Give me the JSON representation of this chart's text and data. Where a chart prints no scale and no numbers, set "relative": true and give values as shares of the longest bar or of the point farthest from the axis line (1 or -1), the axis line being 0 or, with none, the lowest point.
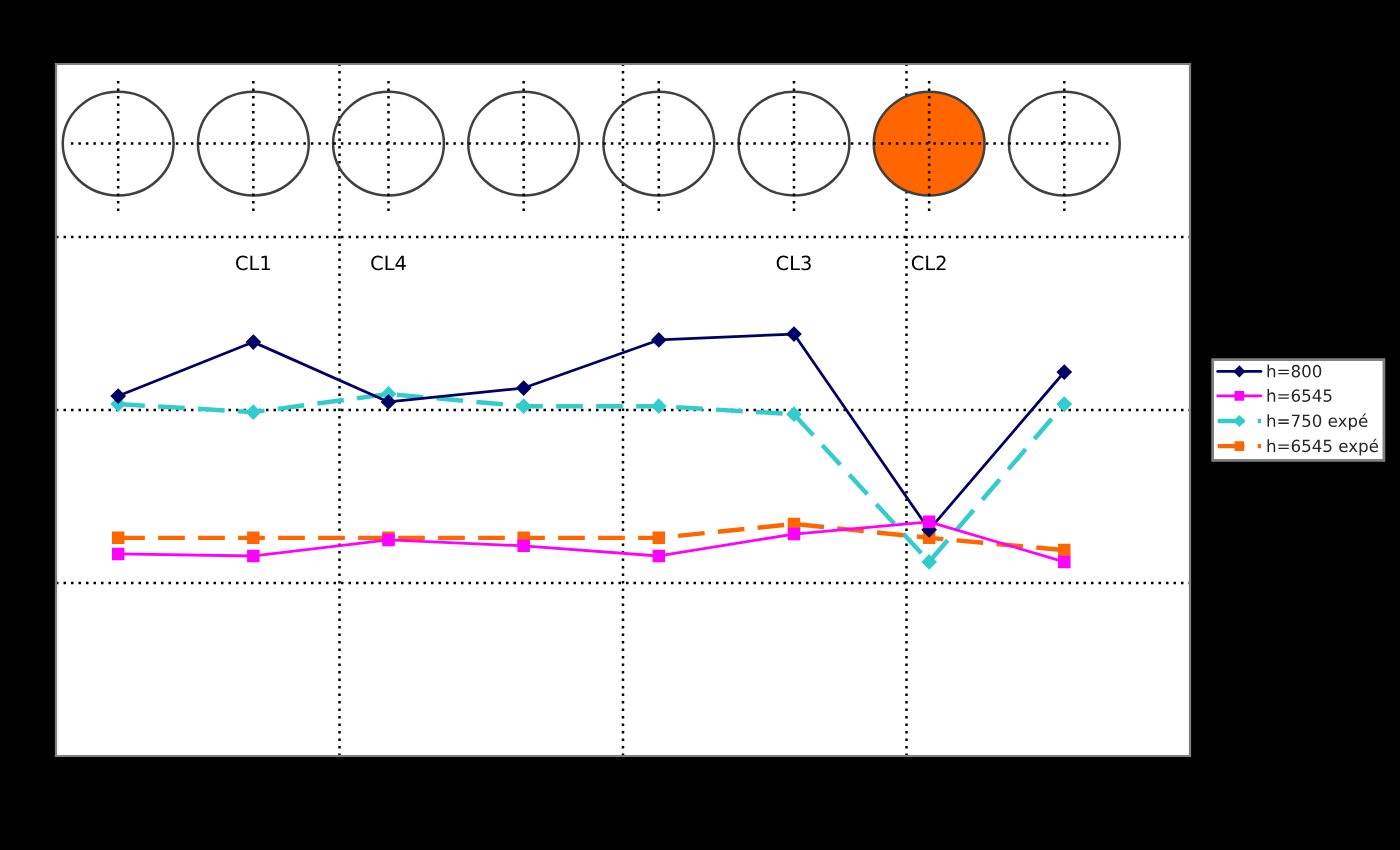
{
  "chart_data": {
    "type": "line",
    "relative": true,
    "grid": true,
    "legend": "right",
    "categories": [
      null,
      null,
      null,
      null,
      null,
      null,
      null,
      null
    ],
    "annotations": [
      "CL1",
      "CL4",
      "CL3",
      "CL2"
    ],
    "series": [
      {
        "name": "h=800",
        "color": "#000066",
        "marker": "diamond",
        "line_style": "solid",
        "values": [
          0.853,
          0.981,
          0.839,
          0.872,
          0.986,
          1,
          0.536,
          0.91
        ]
      },
      {
        "name": "h=6545",
        "color": "#ff00ff",
        "marker": "square",
        "line_style": "solid",
        "values": [
          0.479,
          0.474,
          0.512,
          0.498,
          0.474,
          0.526,
          0.555,
          0.46
        ]
      },
      {
        "name": "h=750 expé",
        "color": "#33cccc",
        "marker": "diamond",
        "line_style": "dashed",
        "values": [
          0.834,
          0.815,
          0.858,
          0.829,
          0.829,
          0.81,
          0.46,
          0.834
        ]
      },
      {
        "name": "h=6545 expé",
        "color": "#ff6600",
        "marker": "square",
        "line_style": "dashed",
        "values": [
          0.517,
          0.517,
          0.517,
          0.517,
          0.517,
          0.55,
          0.517,
          0.488
        ]
      }
    ]
  }
}
